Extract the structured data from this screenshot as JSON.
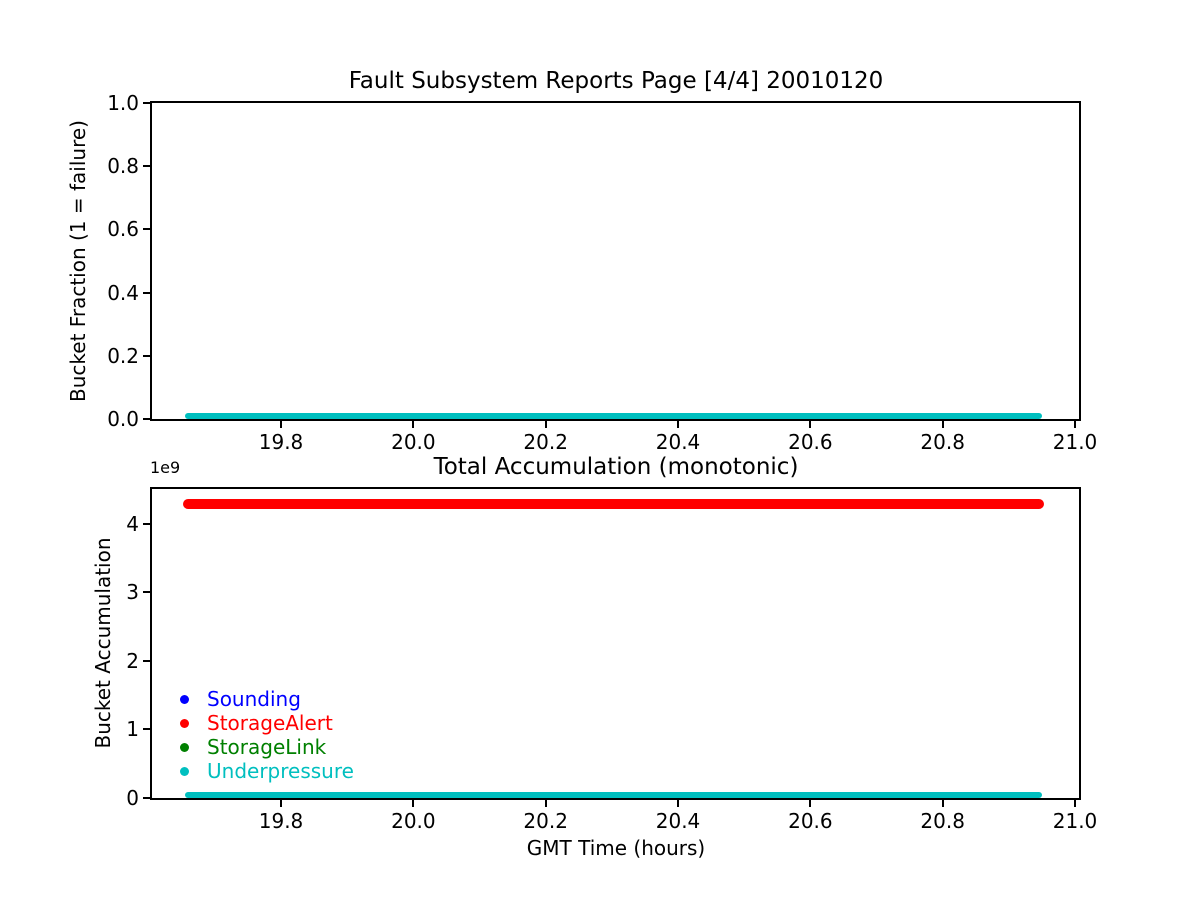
{
  "figure": {
    "background": "#ffffff",
    "axis_color": "#000000"
  },
  "chart_data": [
    {
      "type": "line",
      "title": "Fault Subsystem Reports Page [4/4] 20010120",
      "xlabel": "",
      "ylabel": "Bucket Fraction (1 = failure)",
      "grid": false,
      "xlim": [
        19.605,
        21.006
      ],
      "ylim": [
        0.0,
        1.0
      ],
      "xticks": [
        {
          "value": 19.8,
          "label": "19.8"
        },
        {
          "value": 20.0,
          "label": "20.0"
        },
        {
          "value": 20.2,
          "label": "20.2"
        },
        {
          "value": 20.4,
          "label": "20.4"
        },
        {
          "value": 20.6,
          "label": "20.6"
        },
        {
          "value": 20.8,
          "label": "20.8"
        },
        {
          "value": 21.0,
          "label": "21.0"
        }
      ],
      "yticks": [
        {
          "value": 0.0,
          "label": "0.0"
        },
        {
          "value": 0.2,
          "label": "0.2"
        },
        {
          "value": 0.4,
          "label": "0.4"
        },
        {
          "value": 0.6,
          "label": "0.6"
        },
        {
          "value": 0.8,
          "label": "0.8"
        },
        {
          "value": 1.0,
          "label": "1.0"
        }
      ],
      "series": [
        {
          "name": "Underpressure",
          "color": "#00bfbf",
          "marker": "dot",
          "x_start": 19.66,
          "x_end": 20.945,
          "y_constant": 0.0,
          "thickness": 6
        }
      ]
    },
    {
      "type": "line",
      "title": "Total Accumulation (monotonic)",
      "xlabel": "GMT Time (hours)",
      "ylabel": "Bucket Accumulation",
      "offset_text": "1e9",
      "grid": false,
      "xlim": [
        19.605,
        21.006
      ],
      "ylim": [
        0,
        4510000000
      ],
      "xticks": [
        {
          "value": 19.8,
          "label": "19.8"
        },
        {
          "value": 20.0,
          "label": "20.0"
        },
        {
          "value": 20.2,
          "label": "20.2"
        },
        {
          "value": 20.4,
          "label": "20.4"
        },
        {
          "value": 20.6,
          "label": "20.6"
        },
        {
          "value": 20.8,
          "label": "20.8"
        },
        {
          "value": 21.0,
          "label": "21.0"
        }
      ],
      "yticks": [
        {
          "value": 0,
          "label": "0"
        },
        {
          "value": 1000000000,
          "label": "1"
        },
        {
          "value": 2000000000,
          "label": "2"
        },
        {
          "value": 3000000000,
          "label": "3"
        },
        {
          "value": 4000000000,
          "label": "4"
        }
      ],
      "series": [
        {
          "name": "StorageAlert",
          "color": "#ff0000",
          "marker": "dot",
          "x_start": 19.66,
          "x_end": 20.945,
          "y_constant": 4295000000,
          "thickness": 10
        },
        {
          "name": "Underpressure",
          "color": "#00bfbf",
          "marker": "dot",
          "x_start": 19.66,
          "x_end": 20.945,
          "y_constant": 0,
          "thickness": 6
        }
      ],
      "legend": {
        "position": "center-left",
        "entries": [
          {
            "label": "Sounding",
            "color": "#0000ff"
          },
          {
            "label": "StorageAlert",
            "color": "#ff0000"
          },
          {
            "label": "StorageLink",
            "color": "#008000"
          },
          {
            "label": "Underpressure",
            "color": "#00bfbf"
          }
        ]
      }
    }
  ]
}
